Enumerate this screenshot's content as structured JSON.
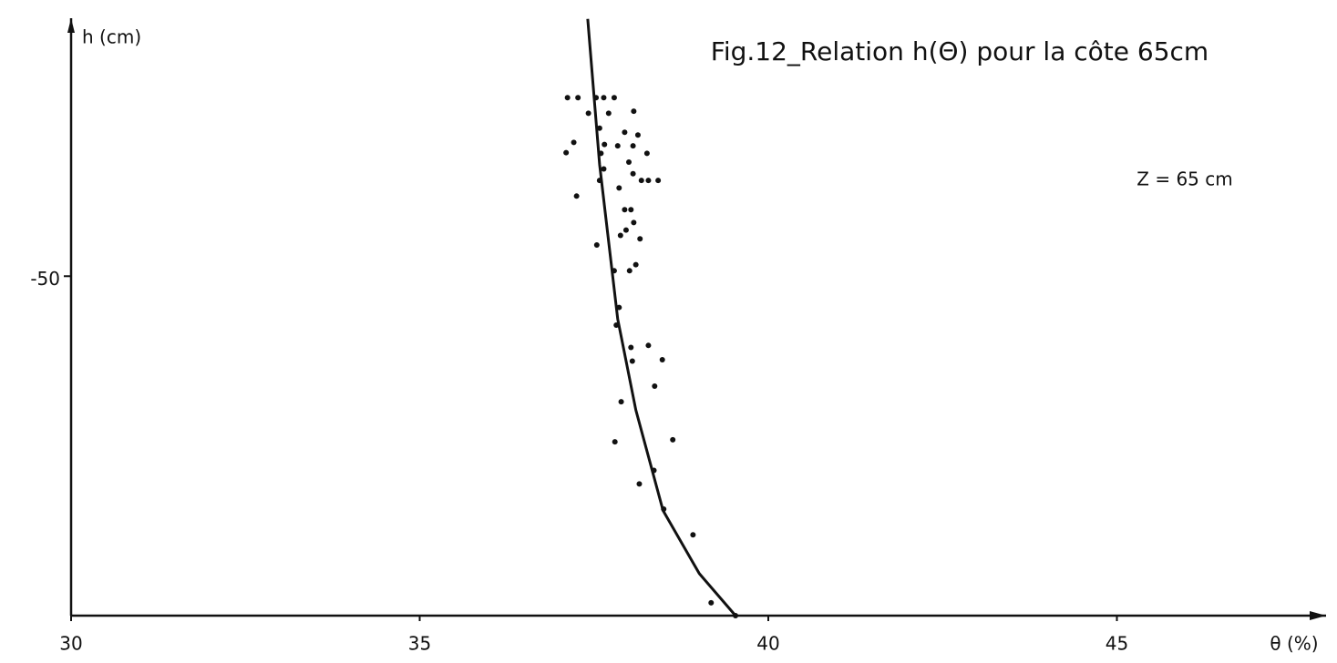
{
  "chart_data": {
    "type": "scatter",
    "title": "Fig.12_Relation  h(Θ) pour la côte 65cm",
    "annotation": "Z = 65 cm",
    "x_label": "θ (%)",
    "y_label": "h (cm)",
    "xlim": [
      30,
      48
    ],
    "ylim": [
      0,
      -88
    ],
    "xticks": [
      30,
      35,
      40,
      45
    ],
    "yticks": [
      -50
    ],
    "series": [
      {
        "type": "scatter",
        "color": "#111111",
        "x": [
          37.12,
          37.27,
          37.53,
          37.64,
          37.79,
          37.42,
          37.71,
          38.07,
          37.58,
          37.94,
          38.13,
          37.21,
          37.65,
          37.84,
          38.06,
          37.1,
          38.26,
          37.6,
          38.0,
          37.64,
          38.06,
          37.58,
          38.18,
          38.28,
          38.42,
          37.86,
          37.25,
          37.94,
          38.03,
          38.07,
          37.88,
          37.96,
          38.16,
          37.54,
          38.1,
          37.79,
          38.01,
          37.86,
          37.82,
          38.03,
          38.28,
          38.05,
          38.48,
          38.37,
          37.89,
          38.63,
          37.8,
          38.36,
          38.15,
          38.5,
          38.92,
          39.18,
          39.53
        ],
        "values": [
          -76.3,
          -76.3,
          -76.3,
          -76.3,
          -76.3,
          -74.0,
          -74.0,
          -74.3,
          -71.8,
          -71.2,
          -70.8,
          -69.7,
          -69.4,
          -69.2,
          -69.2,
          -68.2,
          -68.1,
          -68.1,
          -66.8,
          -65.8,
          -65.1,
          -64.1,
          -64.1,
          -64.1,
          -64.1,
          -63.0,
          -61.8,
          -59.8,
          -59.8,
          -57.9,
          -56.0,
          -56.8,
          -55.5,
          -54.6,
          -51.7,
          -50.8,
          -50.8,
          -45.4,
          -42.8,
          -39.5,
          -39.8,
          -37.5,
          -37.7,
          -33.8,
          -31.5,
          -25.9,
          -25.6,
          -21.4,
          -19.4,
          -15.7,
          -11.9,
          -1.9,
          0
        ]
      },
      {
        "type": "line",
        "color": "#111111",
        "x": [
          37.41,
          37.58,
          37.84,
          38.1,
          38.49,
          39.01,
          39.53
        ],
        "values": [
          -87.9,
          -66.5,
          -43.7,
          -30.3,
          -15.5,
          -6.2,
          0
        ]
      }
    ]
  }
}
